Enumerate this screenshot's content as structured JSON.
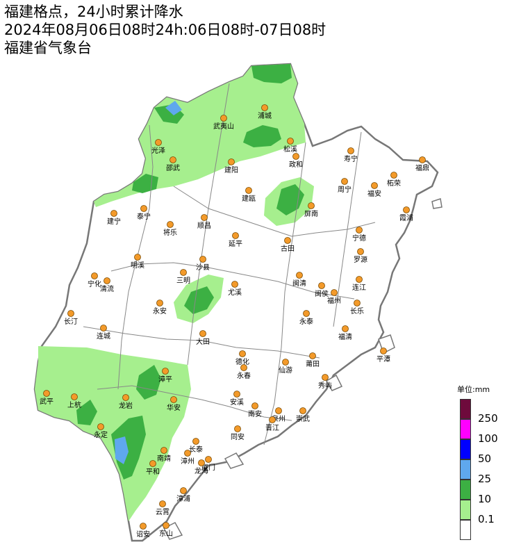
{
  "header": {
    "title": "福建格点，24小时累计降水",
    "time_range": "2024年08月06日08时24h:06日08时-07日08时",
    "agency": "福建省气象台"
  },
  "legend": {
    "unit_label": "单位:mm",
    "levels": [
      {
        "label": "250",
        "color": "#6e0a3c"
      },
      {
        "label": "100",
        "color": "#ff00ff"
      },
      {
        "label": "50",
        "color": "#0000ff"
      },
      {
        "label": "25",
        "color": "#5fa8ee"
      },
      {
        "label": "10",
        "color": "#3cb043"
      },
      {
        "label": "0.1",
        "color": "#a6ef8e"
      },
      {
        "label": "",
        "color": "#ffffff"
      }
    ]
  },
  "colors": {
    "light_rain": "#a6ef8e",
    "moderate_rain": "#3cb043",
    "heavy_rain": "#5fa8ee",
    "border": "#777777",
    "city_dot": "#f39a2a"
  },
  "cities": [
    {
      "name": "浦城"
    },
    {
      "name": "武夷山"
    },
    {
      "name": "光泽"
    },
    {
      "name": "松溪"
    },
    {
      "name": "政和"
    },
    {
      "name": "寿宁"
    },
    {
      "name": "福鼎"
    },
    {
      "name": "邵武"
    },
    {
      "name": "建阳"
    },
    {
      "name": "柘荣"
    },
    {
      "name": "周宁"
    },
    {
      "name": "福安"
    },
    {
      "name": "建瓯"
    },
    {
      "name": "霞浦"
    },
    {
      "name": "屏南"
    },
    {
      "name": "建宁"
    },
    {
      "name": "泰宁"
    },
    {
      "name": "顺昌"
    },
    {
      "name": "将乐"
    },
    {
      "name": "宁德"
    },
    {
      "name": "延平"
    },
    {
      "name": "古田"
    },
    {
      "name": "罗源"
    },
    {
      "name": "明溪"
    },
    {
      "name": "沙县"
    },
    {
      "name": "宁化"
    },
    {
      "name": "清流"
    },
    {
      "name": "三明"
    },
    {
      "name": "闽清"
    },
    {
      "name": "连江"
    },
    {
      "name": "尤溪"
    },
    {
      "name": "闽侯"
    },
    {
      "name": "福州"
    },
    {
      "name": "长乐"
    },
    {
      "name": "永安"
    },
    {
      "name": "长汀"
    },
    {
      "name": "永泰"
    },
    {
      "name": "连城"
    },
    {
      "name": "大田"
    },
    {
      "name": "福清"
    },
    {
      "name": "平潭"
    },
    {
      "name": "德化"
    },
    {
      "name": "莆田"
    },
    {
      "name": "永春"
    },
    {
      "name": "仙游"
    },
    {
      "name": "漳平"
    },
    {
      "name": "秀屿"
    },
    {
      "name": "武平"
    },
    {
      "name": "上杭"
    },
    {
      "name": "龙岩"
    },
    {
      "name": "安溪"
    },
    {
      "name": "南安"
    },
    {
      "name": "华安"
    },
    {
      "name": "泉州"
    },
    {
      "name": "崇武"
    },
    {
      "name": "晋江"
    },
    {
      "name": "永定"
    },
    {
      "name": "同安"
    },
    {
      "name": "长泰"
    },
    {
      "name": "南靖"
    },
    {
      "name": "漳州"
    },
    {
      "name": "厦门"
    },
    {
      "name": "龙海"
    },
    {
      "name": "平和"
    },
    {
      "name": "漳浦"
    },
    {
      "name": "云霄"
    },
    {
      "name": "诏安"
    },
    {
      "name": "东山"
    }
  ]
}
